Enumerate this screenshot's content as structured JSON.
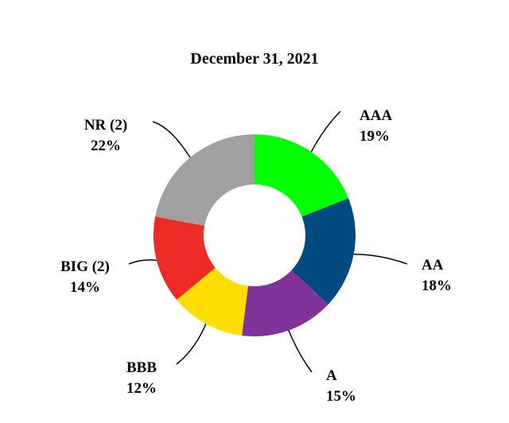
{
  "chart_data": {
    "type": "donut",
    "title": "December 31, 2021",
    "categories": [
      "AAA",
      "AA",
      "A",
      "BBB",
      "BIG (2)",
      "NR (2)"
    ],
    "values": [
      19,
      18,
      15,
      12,
      14,
      22
    ],
    "value_labels": [
      "19%",
      "18%",
      "15%",
      "12%",
      "14%",
      "22%"
    ],
    "colors": [
      "#00ff00",
      "#004a80",
      "#7f3399",
      "#ffdd00",
      "#ee2a24",
      "#a0a0a0"
    ]
  }
}
